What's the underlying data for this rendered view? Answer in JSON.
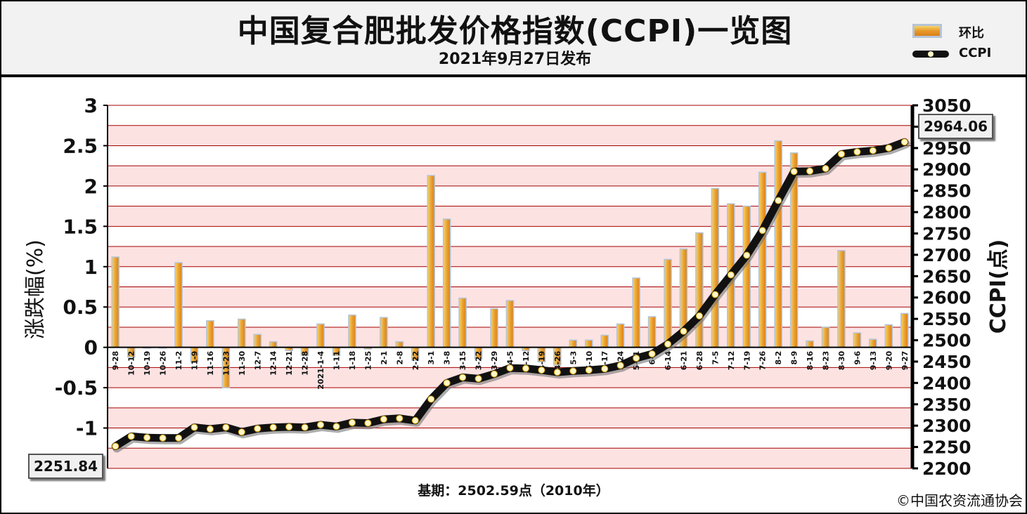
{
  "header": {
    "title": "中国复合肥批发价格指数(CCPI)一览图",
    "subtitle": "2021年9月27日发布"
  },
  "legend": {
    "bar_label": "环比",
    "line_label": "CCPI"
  },
  "footer": {
    "base": "基期：2502.59点（2010年）",
    "copyright": "©中国农资流通协会"
  },
  "callouts": {
    "first": "2251.84",
    "last": "2964.06"
  },
  "colors": {
    "bar_fill_top": "#f5d36a",
    "bar_fill_bottom": "#d9801a",
    "bar_edge": "#b5c4d6",
    "line": "#111111",
    "dot": "#fff6c8",
    "band": "#fde2e2",
    "gridline": "#a30000"
  },
  "chart_data": {
    "type": "bar",
    "title": "中国复合肥批发价格指数(CCPI)一览图",
    "categories": [
      "9-28",
      "10-12",
      "10-19",
      "10-26",
      "11-2",
      "11-9",
      "11-16",
      "11-23",
      "11-30",
      "12-7",
      "12-14",
      "12-21",
      "12-28",
      "2021-1-4",
      "1-11",
      "1-18",
      "1-25",
      "2-1",
      "2-8",
      "2-22",
      "3-1",
      "3-8",
      "3-15",
      "3-22",
      "3-29",
      "4-5",
      "4-12",
      "4-19",
      "4-26",
      "5-3",
      "5-10",
      "5-17",
      "5-24",
      "5-31",
      "6-7",
      "6-14",
      "6-21",
      "6-28",
      "7-5",
      "7-12",
      "7-19",
      "7-26",
      "8-2",
      "8-9",
      "8-16",
      "8-23",
      "8-30",
      "9-6",
      "9-13",
      "9-20",
      "9-27"
    ],
    "series": [
      {
        "name": "环比",
        "axis": "left",
        "values": [
          1.12,
          -0.12,
          0.0,
          0.0,
          1.05,
          -0.18,
          0.33,
          -0.5,
          0.35,
          0.16,
          0.07,
          -0.04,
          -0.1,
          0.29,
          -0.1,
          0.4,
          -0.02,
          0.37,
          0.07,
          -0.16,
          2.13,
          1.59,
          0.61,
          -0.14,
          0.48,
          0.58,
          -0.04,
          -0.18,
          -0.22,
          0.09,
          0.09,
          0.15,
          0.29,
          0.86,
          0.38,
          1.09,
          1.22,
          1.42,
          1.97,
          1.78,
          1.75,
          2.17,
          2.56,
          2.41,
          0.08,
          0.25,
          1.2,
          0.18,
          0.1,
          0.28,
          0.42
        ]
      },
      {
        "name": "CCPI",
        "axis": "right",
        "values": [
          2251.84,
          2275,
          2272,
          2271,
          2271,
          2296,
          2292,
          2296,
          2285,
          2293,
          2296,
          2297,
          2296,
          2302,
          2298,
          2307,
          2306,
          2315,
          2317,
          2312,
          2362,
          2400,
          2413,
          2410,
          2421,
          2435,
          2434,
          2430,
          2425,
          2428,
          2430,
          2433,
          2441,
          2458,
          2468,
          2491,
          2521,
          2557,
          2607,
          2653,
          2699,
          2757,
          2827,
          2895,
          2896,
          2902,
          2936,
          2941,
          2944,
          2950,
          2964.06
        ]
      }
    ],
    "y_left": {
      "label": "涨跌幅(%)",
      "ylim": [
        -1.5,
        3
      ],
      "ticks": [
        "3",
        "2.5",
        "2",
        "1.5",
        "1",
        "0.5",
        "0",
        "-0.5",
        "-1"
      ]
    },
    "y_right": {
      "label": "CCPI(点)",
      "ylim": [
        2200,
        3050
      ],
      "ticks": [
        "3050",
        "3000",
        "2950",
        "2900",
        "2850",
        "2800",
        "2750",
        "2700",
        "2650",
        "2600",
        "2550",
        "2500",
        "2450",
        "2400",
        "2350",
        "2300",
        "2250",
        "2200"
      ]
    },
    "grid": true,
    "legend_position": "top-right"
  }
}
